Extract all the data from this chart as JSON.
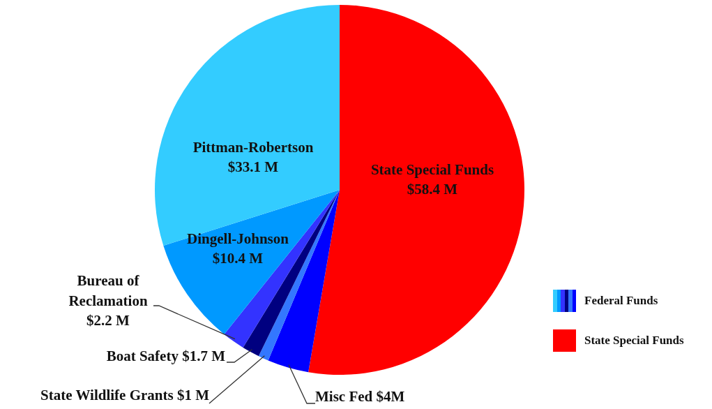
{
  "chart_data": {
    "type": "pie",
    "categories": [
      "State Special Funds",
      "Misc Fed",
      "State Wildlife Grants",
      "Boat Safety",
      "Bureau of Reclamation",
      "Dingell-Johnson",
      "Pittman-Robertson"
    ],
    "values": [
      58.4,
      4,
      1,
      1.7,
      2.2,
      10.4,
      33.1
    ],
    "value_labels": [
      "$58.4 M",
      "$4M",
      "$1 M",
      "$1.7 M",
      "$2.2 M",
      "$10.4 M",
      "$33.1 M"
    ],
    "colors": [
      "#ff0000",
      "#0000ff",
      "#3377ff",
      "#000080",
      "#3333ff",
      "#0099ff",
      "#33ccff"
    ],
    "annotations": [
      "Federal Funds",
      "State Special Funds"
    ]
  }
}
